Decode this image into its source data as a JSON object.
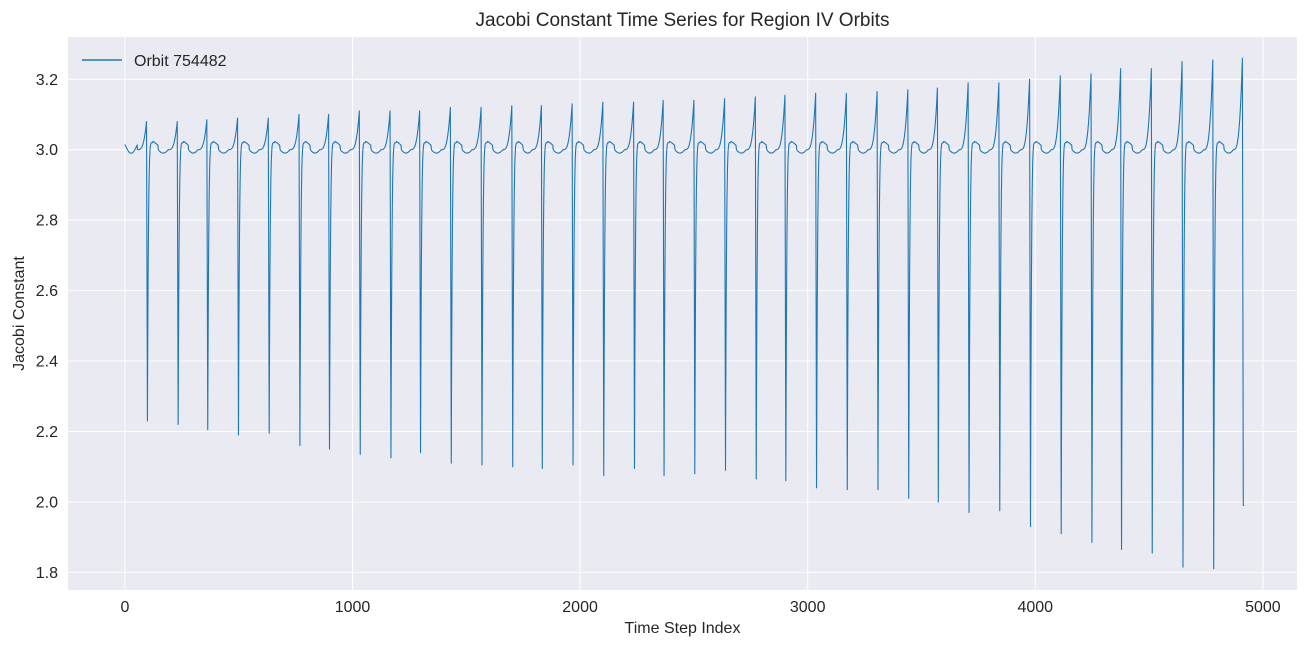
{
  "chart_data": {
    "type": "line",
    "title": "Jacobi Constant Time Series for Region IV Orbits",
    "xlabel": "Time Step Index",
    "ylabel": "Jacobi Constant",
    "xlim": [
      -250,
      5150
    ],
    "ylim": [
      1.75,
      3.32
    ],
    "xticks": [
      0,
      1000,
      2000,
      3000,
      4000,
      5000
    ],
    "xtick_labels": [
      "0",
      "1000",
      "2000",
      "3000",
      "4000",
      "5000"
    ],
    "yticks": [
      1.8,
      2.0,
      2.2,
      2.4,
      2.6,
      2.8,
      3.0,
      3.2
    ],
    "ytick_labels": [
      "1.8",
      "2.0",
      "2.2",
      "2.4",
      "2.6",
      "2.8",
      "3.0",
      "3.2"
    ],
    "grid": true,
    "legend_position": "top-left",
    "series": [
      {
        "name": "Orbit 754482",
        "color": "#1f77b4",
        "x_end": 4918,
        "baseline": 3.0,
        "period_count": 37,
        "cycle_peak_x": [
          95,
          230,
          360,
          495,
          630,
          765,
          895,
          1030,
          1165,
          1295,
          1430,
          1565,
          1700,
          1830,
          1965,
          2100,
          2235,
          2365,
          2500,
          2635,
          2770,
          2900,
          3035,
          3170,
          3305,
          3440,
          3570,
          3705,
          3840,
          3975,
          4110,
          4245,
          4375,
          4510,
          4645,
          4780,
          4910
        ],
        "cycle_peaks": [
          3.08,
          3.08,
          3.085,
          3.09,
          3.09,
          3.1,
          3.1,
          3.11,
          3.11,
          3.11,
          3.12,
          3.12,
          3.125,
          3.125,
          3.13,
          3.135,
          3.135,
          3.14,
          3.14,
          3.145,
          3.15,
          3.155,
          3.16,
          3.16,
          3.165,
          3.17,
          3.175,
          3.19,
          3.19,
          3.2,
          3.21,
          3.215,
          3.23,
          3.23,
          3.25,
          3.255,
          3.26
        ],
        "cycle_minima": [
          2.23,
          2.22,
          2.205,
          2.19,
          2.195,
          2.16,
          2.15,
          2.135,
          2.125,
          2.14,
          2.11,
          2.105,
          2.1,
          2.095,
          2.105,
          2.075,
          2.095,
          2.075,
          2.08,
          2.09,
          2.065,
          2.06,
          2.04,
          2.035,
          2.035,
          2.01,
          2.0,
          1.97,
          1.975,
          1.93,
          1.91,
          1.885,
          1.865,
          1.855,
          1.815,
          1.81,
          1.99
        ]
      }
    ]
  }
}
